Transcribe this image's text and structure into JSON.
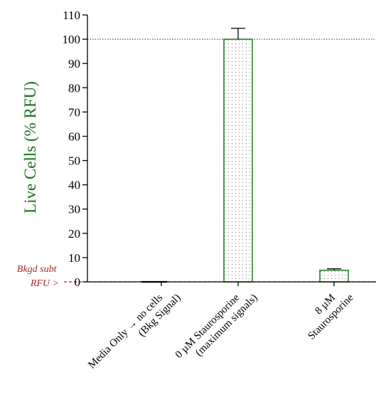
{
  "chart_data": {
    "type": "bar",
    "ylabel": "Live Cells (% RFU)",
    "ylim": [
      0,
      110
    ],
    "yticks": [
      0,
      10,
      20,
      30,
      40,
      50,
      60,
      70,
      80,
      90,
      100,
      110
    ],
    "categories": [
      {
        "line1": "Media Only → no cells",
        "line2": "(Bkg Signal)"
      },
      {
        "line1": "0 µM Staurosporine",
        "line2": "(maximum signals)"
      },
      {
        "line1": "8 µM",
        "line2": "Staurosporine"
      }
    ],
    "values": [
      0,
      100,
      4.8
    ],
    "error_upper": [
      0,
      4.5,
      0.6
    ],
    "reference_lines": [
      {
        "value": 100,
        "style": "dotted"
      },
      {
        "value": 0,
        "style": "dashed",
        "color": "#a52a2a"
      }
    ],
    "annotation": {
      "line1": "Bkgd subt",
      "line2": "RFU >"
    },
    "bar_color": "#1a7a1a",
    "ylabel_color": "#1a6e1a",
    "annotation_color": "#a52a2a",
    "grid": false
  }
}
